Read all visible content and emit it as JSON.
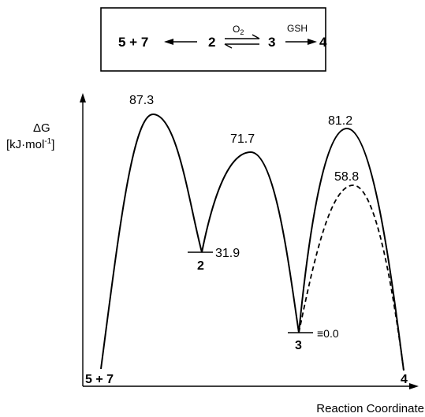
{
  "scheme": {
    "left_product": "5 + 7",
    "species_2": "2",
    "species_3": "3",
    "species_4": "4",
    "reagent_o2_base": "O",
    "reagent_o2_sub": "2",
    "reagent_gsh": "GSH"
  },
  "axis": {
    "y_label_line1": "ΔG",
    "y_label_line2": "[kJ·mol",
    "y_label_sup": "-1",
    "y_label_close": "]",
    "x_label": "Reaction Coordinate"
  },
  "levels": {
    "start_label": "5 + 7",
    "ts1_value": "87.3",
    "int2_label": "2",
    "int2_value": "31.9",
    "ts2_value": "71.7",
    "int3_label": "3",
    "int3_value": "≡0.0",
    "ts3_value": "81.2",
    "ts3_alt_value": "58.8",
    "end_label": "4"
  },
  "colors": {
    "line": "#000000",
    "background": "#ffffff"
  }
}
